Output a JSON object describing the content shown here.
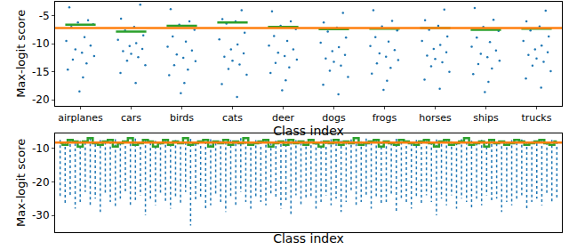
{
  "chart_data": [
    {
      "type": "scatter",
      "x_label": "Class index",
      "y_label": "Max-logit score",
      "xlim": [
        -0.5,
        9.5
      ],
      "xticks": [
        {
          "value": 0,
          "label": "airplanes"
        },
        {
          "value": 1,
          "label": "cars"
        },
        {
          "value": 2,
          "label": "birds"
        },
        {
          "value": 3,
          "label": "cats"
        },
        {
          "value": 4,
          "label": "deer"
        },
        {
          "value": 5,
          "label": "dogs"
        },
        {
          "value": 6,
          "label": "frogs"
        },
        {
          "value": 7,
          "label": "horses"
        },
        {
          "value": 8,
          "label": "ships"
        },
        {
          "value": 9,
          "label": "trucks"
        }
      ],
      "ylim": [
        -21,
        -2.5
      ],
      "yticks": [
        -5,
        -10,
        -15,
        -20
      ],
      "grid": false,
      "series": [
        {
          "type": "scatter",
          "color": "#1f77b4",
          "marker": "dot",
          "x": [
            -0.22,
            0.15,
            -0.05,
            0.25,
            -0.18,
            0.08,
            -0.28,
            0.2,
            -0.1,
            0.03,
            0.27,
            -0.15,
            0.12,
            -0.25,
            0.05,
            -0.02,
            1.18,
            0.8,
            1.06,
            0.88,
            1.24,
            0.74,
            1.1,
            0.97,
            1.22,
            0.84,
            1.0,
            1.14,
            0.92,
            1.28,
            0.79,
            1.09,
            1.78,
            2.15,
            1.95,
            2.25,
            1.82,
            2.08,
            1.72,
            2.2,
            1.9,
            2.03,
            2.27,
            1.85,
            2.12,
            1.75,
            2.05,
            1.98,
            3.18,
            2.8,
            3.06,
            2.88,
            3.24,
            2.74,
            3.1,
            2.97,
            3.22,
            2.84,
            3.0,
            3.14,
            2.92,
            3.28,
            2.79,
            3.09,
            3.78,
            4.15,
            3.95,
            4.25,
            3.82,
            4.08,
            3.72,
            4.2,
            3.9,
            4.03,
            4.27,
            3.85,
            4.12,
            3.75,
            4.05,
            3.98,
            5.18,
            4.8,
            5.06,
            4.88,
            5.24,
            4.74,
            5.1,
            4.97,
            5.22,
            4.84,
            5.0,
            5.14,
            4.92,
            5.28,
            4.79,
            5.09,
            5.78,
            6.15,
            5.95,
            6.25,
            5.82,
            6.08,
            5.72,
            6.2,
            5.9,
            6.03,
            6.27,
            5.85,
            6.12,
            5.75,
            6.05,
            5.98,
            7.18,
            6.8,
            7.06,
            6.88,
            7.24,
            6.74,
            7.1,
            6.97,
            7.22,
            6.84,
            7.0,
            7.14,
            6.92,
            7.28,
            6.79,
            7.09,
            7.78,
            8.15,
            7.95,
            8.25,
            7.82,
            8.08,
            7.72,
            8.2,
            7.9,
            8.03,
            8.27,
            7.85,
            8.12,
            7.75,
            8.05,
            7.98,
            9.18,
            8.8,
            9.06,
            8.88,
            9.24,
            8.74,
            9.1,
            8.97,
            9.22,
            8.84,
            9.0,
            9.14,
            8.92,
            9.28,
            8.79,
            9.09
          ],
          "values": [
            -3.5,
            -5.8,
            -6.2,
            -6.5,
            -7.0,
            -8.8,
            -9.5,
            -10.3,
            -11.0,
            -11.6,
            -12.2,
            -12.8,
            -13.5,
            -14.6,
            -16.0,
            -18.5,
            -3.0,
            -5.5,
            -7.0,
            -7.6,
            -8.5,
            -9.3,
            -9.9,
            -10.4,
            -10.9,
            -11.3,
            -11.8,
            -12.4,
            -13.0,
            -13.8,
            -15.2,
            -17.0,
            -3.8,
            -6.0,
            -6.6,
            -7.5,
            -8.7,
            -9.6,
            -10.5,
            -11.2,
            -11.9,
            -12.5,
            -13.1,
            -13.8,
            -14.6,
            -15.6,
            -17.0,
            -18.8,
            -4.0,
            -5.6,
            -6.0,
            -6.4,
            -8.0,
            -9.2,
            -10.1,
            -11.0,
            -11.7,
            -12.3,
            -13.0,
            -13.7,
            -14.5,
            -15.5,
            -17.2,
            -19.5,
            -4.2,
            -6.0,
            -6.8,
            -7.4,
            -8.6,
            -9.5,
            -10.3,
            -11.0,
            -11.6,
            -12.2,
            -12.8,
            -13.4,
            -14.2,
            -15.2,
            -16.5,
            -18.3,
            -4.5,
            -6.2,
            -7.1,
            -7.8,
            -8.9,
            -9.8,
            -10.6,
            -11.3,
            -12.0,
            -12.6,
            -13.2,
            -13.9,
            -14.8,
            -15.9,
            -17.3,
            -19.0,
            -4.0,
            -5.9,
            -6.9,
            -7.6,
            -8.8,
            -9.6,
            -10.4,
            -11.1,
            -11.7,
            -12.3,
            -12.9,
            -13.5,
            -14.3,
            -15.3,
            -16.6,
            -18.2,
            -3.9,
            -5.8,
            -6.8,
            -7.5,
            -8.7,
            -9.5,
            -10.2,
            -10.9,
            -11.5,
            -12.1,
            -12.7,
            -13.3,
            -14.0,
            -15.0,
            -16.4,
            -18.0,
            -3.6,
            -5.7,
            -7.0,
            -7.7,
            -8.9,
            -9.7,
            -10.5,
            -11.2,
            -11.8,
            -12.4,
            -13.0,
            -13.6,
            -14.4,
            -15.4,
            -16.8,
            -18.6,
            -4.1,
            -6.0,
            -6.9,
            -7.6,
            -8.7,
            -9.5,
            -10.3,
            -11.0,
            -11.5,
            -12.0,
            -12.6,
            -13.2,
            -13.9,
            -14.9,
            -16.2,
            -17.8
          ]
        },
        {
          "type": "line",
          "color": "#2ca02c",
          "line_style": "solid",
          "x": [
            -0.3,
            0.3,
            0.5,
            0.7,
            1.3,
            1.5,
            1.7,
            2.3,
            2.5,
            2.7,
            3.3,
            3.5,
            3.7,
            4.3,
            4.5,
            4.7,
            5.3,
            5.5,
            5.7,
            6.3,
            6.5,
            6.7,
            7.3,
            7.5,
            7.7,
            8.3,
            8.5,
            8.7,
            9.3,
            9.5
          ],
          "values": [
            -6.6,
            -6.6,
            null,
            -7.8,
            -7.8,
            null,
            -6.8,
            -6.8,
            null,
            -6.2,
            -6.2,
            null,
            -7.0,
            -7.0,
            null,
            -7.4,
            -7.4,
            null,
            -7.3,
            -7.3,
            null,
            -7.2,
            -7.2,
            null,
            -7.5,
            -7.5,
            null,
            -7.3,
            -7.3,
            null
          ]
        },
        {
          "type": "line",
          "color": "#ff7f0e",
          "line_style": "solid",
          "x": [
            -0.5,
            9.5
          ],
          "values": [
            -7.2,
            -7.2
          ]
        }
      ]
    },
    {
      "type": "scatter",
      "x_label": "Class index",
      "y_label": "Max-logit score",
      "tick_labels": "y",
      "xlim": [
        -1,
        100
      ],
      "ylim": [
        -35,
        -5.5
      ],
      "yticks": [
        -10,
        -20,
        -30
      ],
      "grid": false,
      "x": [
        0,
        1,
        2,
        3,
        4,
        5,
        6,
        7,
        8,
        9,
        10,
        11,
        12,
        13,
        14,
        15,
        16,
        17,
        18,
        19,
        20,
        21,
        22,
        23,
        24,
        25,
        26,
        27,
        28,
        29,
        30,
        31,
        32,
        33,
        34,
        35,
        36,
        37,
        38,
        39,
        40,
        41,
        42,
        43,
        44,
        45,
        46,
        47,
        48,
        49,
        50,
        51,
        52,
        53,
        54,
        55,
        56,
        57,
        58,
        59,
        60,
        61,
        62,
        63,
        64,
        65,
        66,
        67,
        68,
        69,
        70,
        71,
        72,
        73,
        74,
        75,
        76,
        77,
        78,
        79,
        80,
        81,
        82,
        83,
        84,
        85,
        86,
        87,
        88,
        89,
        90,
        91,
        92,
        93,
        94,
        95,
        96,
        97,
        98,
        99
      ],
      "series": [
        {
          "type": "range",
          "color": "#1f77b4",
          "line_style": "dotted",
          "high": [
            -7.5,
            -8.0,
            -7.2,
            -8.5,
            -7.8,
            -8.2,
            -7.0,
            -8.8,
            -7.6,
            -8.1,
            -7.9,
            -7.3,
            -8.4,
            -7.7,
            -8.6,
            -7.1,
            -8.0,
            -7.5,
            -8.3,
            -7.8,
            -8.1,
            -7.4,
            -8.7,
            -7.6,
            -7.9,
            -8.2,
            -7.2,
            -8.5,
            -7.7,
            -8.0,
            -7.3,
            -8.4,
            -7.8,
            -8.1,
            -7.5,
            -8.6,
            -7.0,
            -7.9,
            -8.2,
            -7.6,
            -8.0,
            -7.4,
            -8.3,
            -7.7,
            -8.8,
            -7.2,
            -8.1,
            -7.6,
            -8.4,
            -7.9,
            -7.5,
            -8.2,
            -7.8,
            -8.0,
            -7.3,
            -8.5,
            -7.7,
            -8.1,
            -7.4,
            -8.6,
            -7.9,
            -7.1,
            -8.3,
            -7.6,
            -8.0,
            -7.8,
            -8.4,
            -7.2,
            -8.1,
            -7.7,
            -8.5,
            -7.5,
            -8.0,
            -7.8,
            -8.2,
            -7.4,
            -8.7,
            -7.6,
            -7.9,
            -8.3,
            -7.3,
            -8.1,
            -7.7,
            -8.4,
            -7.5,
            -8.0,
            -7.2,
            -8.6,
            -7.8,
            -8.1,
            -7.6,
            -8.3,
            -7.4,
            -8.0,
            -7.9,
            -8.5,
            -7.7,
            -8.2,
            -7.5,
            -8.0
          ],
          "low": [
            -25,
            -27,
            -24,
            -28,
            -26,
            -23,
            -27,
            -25,
            -29,
            -24,
            -26,
            -28,
            -25,
            -23,
            -27,
            -26,
            -24,
            -30,
            -25,
            -27,
            -24,
            -26,
            -28,
            -25,
            -27,
            -23,
            -33,
            -26,
            -25,
            -28,
            -27,
            -24,
            -26,
            -29,
            -25,
            -27,
            -23,
            -26,
            -28,
            -25,
            -26,
            -27,
            -24,
            -25,
            -28,
            -26,
            -30,
            -24,
            -27,
            -25,
            -25,
            -28,
            -26,
            -24,
            -27,
            -25,
            -29,
            -26,
            -23,
            -27,
            -26,
            -24,
            -28,
            -25,
            -27,
            -26,
            -24,
            -29,
            -25,
            -26,
            -28,
            -25,
            -27,
            -24,
            -26,
            -30,
            -25,
            -27,
            -24,
            -28,
            -25,
            -26,
            -28,
            -25,
            -27,
            -24,
            -26,
            -25,
            -29,
            -26,
            -27,
            -25,
            -24,
            -28,
            -26,
            -25,
            -27,
            -24,
            -26,
            -25
          ]
        },
        {
          "type": "line",
          "color": "#2ca02c",
          "line_style": "steps",
          "values": [
            -8.5,
            -9.0,
            -7.5,
            -8.0,
            -9.5,
            -8.0,
            -7.0,
            -8.5,
            -9.0,
            -8.0,
            -7.5,
            -9.5,
            -8.5,
            -8.0,
            -7.0,
            -9.0,
            -8.5,
            -7.5,
            -8.0,
            -9.5,
            -8.5,
            -7.5,
            -9.0,
            -8.0,
            -8.5,
            -7.0,
            -9.0,
            -8.5,
            -8.0,
            -7.5,
            -9.5,
            -8.0,
            -8.5,
            -7.5,
            -9.0,
            -8.0,
            -8.5,
            -7.0,
            -9.0,
            -8.5,
            -8.0,
            -7.5,
            -9.5,
            -8.5,
            -8.0,
            -9.0,
            -7.5,
            -8.5,
            -8.0,
            -9.0,
            -7.5,
            -8.5,
            -9.5,
            -8.0,
            -8.5,
            -7.5,
            -9.0,
            -8.0,
            -8.5,
            -7.0,
            -9.0,
            -8.5,
            -8.0,
            -7.5,
            -9.5,
            -8.0,
            -8.5,
            -9.0,
            -7.5,
            -8.0,
            -8.5,
            -9.0,
            -8.0,
            -7.5,
            -8.5,
            -9.5,
            -8.0,
            -7.5,
            -9.0,
            -8.5,
            -8.0,
            -7.0,
            -9.0,
            -8.5,
            -8.0,
            -9.5,
            -7.5,
            -8.5,
            -8.0,
            -9.0,
            -8.5,
            -7.5,
            -8.0,
            -9.0,
            -8.5,
            -8.0,
            -7.5,
            -8.5,
            -9.0,
            -8.0
          ]
        },
        {
          "type": "line",
          "color": "#ff7f0e",
          "line_style": "solid",
          "x": [
            -1,
            100
          ],
          "values": [
            -8.3,
            -8.3
          ]
        }
      ]
    }
  ]
}
